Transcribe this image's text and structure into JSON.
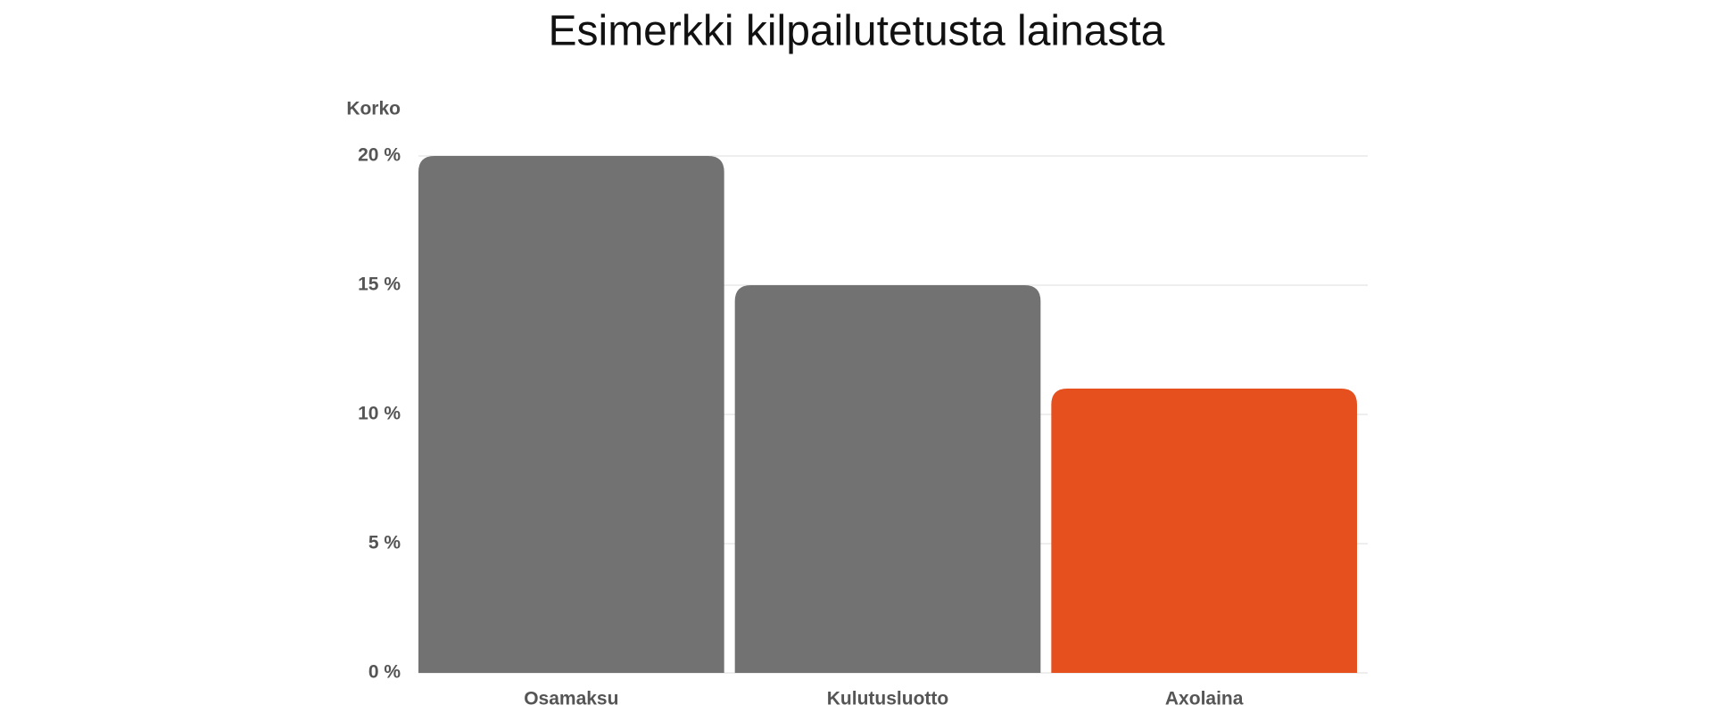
{
  "chart_data": {
    "type": "bar",
    "title": "Esimerkki kilpailutetusta lainasta",
    "y_label": "Korko",
    "categories": [
      "Osamaksu",
      "Kulutusluotto",
      "Axolaina"
    ],
    "values": [
      20,
      15,
      11
    ],
    "colors": [
      "#737272",
      "#737272",
      "#e5501e"
    ],
    "ylim": [
      0,
      20
    ],
    "yticks": [
      {
        "value": 0,
        "label": "0 %"
      },
      {
        "value": 5,
        "label": "5 %"
      },
      {
        "value": 10,
        "label": "10 %"
      },
      {
        "value": 15,
        "label": "15 %"
      },
      {
        "value": 20,
        "label": "20 %"
      }
    ],
    "grid": true
  }
}
